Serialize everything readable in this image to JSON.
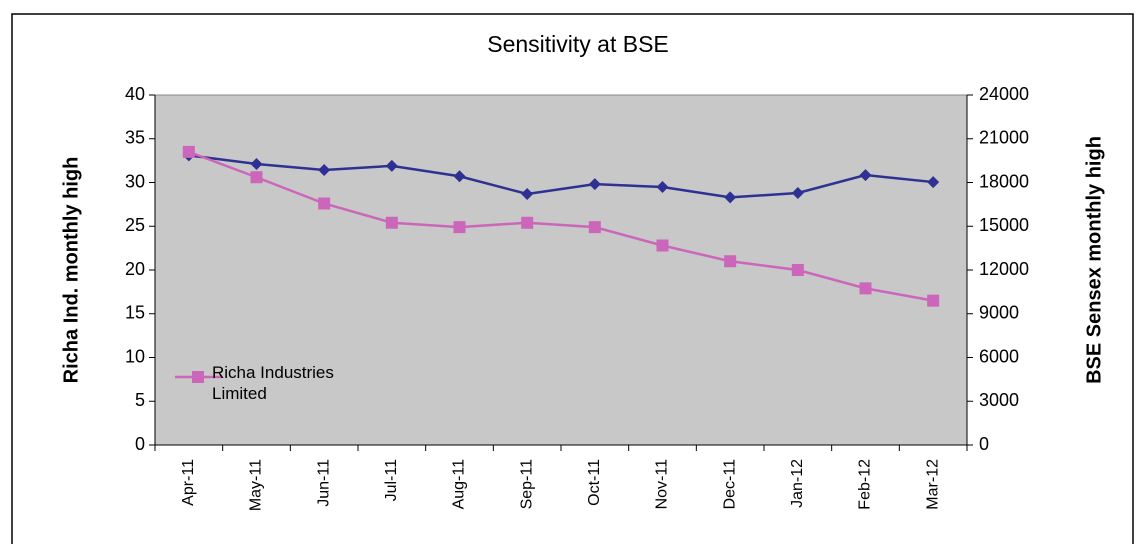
{
  "chart_data": {
    "type": "line",
    "title": "Sensitivity at BSE",
    "y_label": "Richa Ind. monthly high",
    "y2_label": "BSE Sensex monthly high",
    "categories": [
      "Apr-11",
      "May-11",
      "Jun-11",
      "Jul-11",
      "Aug-11",
      "Sep-11",
      "Oct-11",
      "Nov-11",
      "Dec-11",
      "Jan-12",
      "Feb-12",
      "Mar-12"
    ],
    "series": [
      {
        "name": "Richa Industries Limited",
        "color": "#cc66bb",
        "marker": "square",
        "values": [
          33.5,
          30.6,
          27.6,
          25.4,
          24.9,
          25.4,
          24.9,
          22.8,
          21,
          20,
          17.9,
          16.5
        ]
      },
      {
        "color": "#2e3192",
        "marker": "diamond",
        "axis": "y2",
        "values": [
          19860,
          19270,
          18860,
          19140,
          18430,
          17210,
          17890,
          17690,
          16980,
          17280,
          18510,
          18030
        ]
      }
    ],
    "ylim": [
      0,
      40
    ],
    "yticks": [
      0,
      5,
      10,
      15,
      20,
      25,
      30,
      35,
      40
    ],
    "y2lim": [
      0,
      24000
    ],
    "y2ticks": [
      0,
      3000,
      6000,
      9000,
      12000,
      15000,
      18000,
      21000,
      24000
    ],
    "plot_background": "#c8c8c8",
    "legend": "lower left"
  }
}
